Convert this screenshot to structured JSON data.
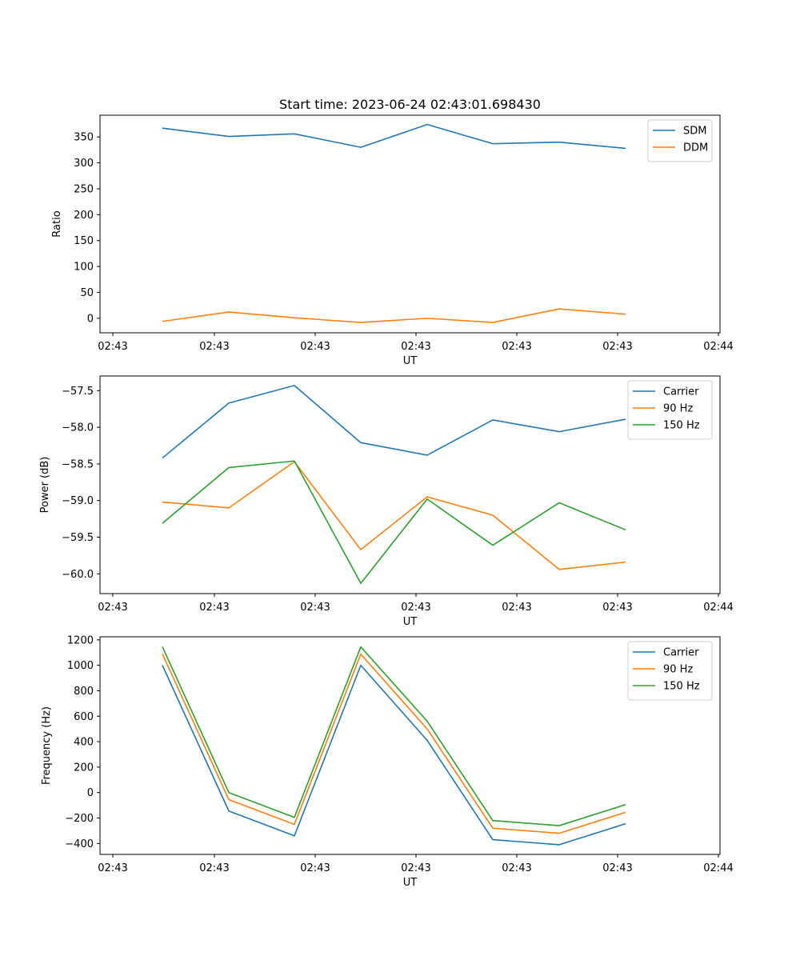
{
  "figure": {
    "title": "Start time: 2023-06-24 02:43:01.698430"
  },
  "chart_data": [
    {
      "type": "line",
      "title": "Start time: 2023-06-24 02:43:01.698430",
      "xlabel": "UT",
      "ylabel": "Ratio",
      "x_tick_labels": [
        "02:43",
        "02:43",
        "02:43",
        "02:43",
        "02:43",
        "02:43",
        "02:43"
      ],
      "x_tick_last_label": "02:44",
      "ylim": [
        -28,
        392
      ],
      "y_ticks": [
        0,
        50,
        100,
        150,
        200,
        250,
        300,
        350
      ],
      "legend_position": "top-right",
      "series": [
        {
          "name": "SDM",
          "color": "#1f77b4",
          "values": [
            367,
            351,
            356,
            330,
            374,
            337,
            340,
            328
          ]
        },
        {
          "name": "DDM",
          "color": "#ff7f0e",
          "values": [
            -6,
            12,
            1,
            -8,
            0,
            -8,
            18,
            8
          ]
        }
      ]
    },
    {
      "type": "line",
      "xlabel": "UT",
      "ylabel": "Power (dB)",
      "x_tick_labels": [
        "02:43",
        "02:43",
        "02:43",
        "02:43",
        "02:43",
        "02:43",
        "02:43"
      ],
      "x_tick_last_label": "02:44",
      "ylim": [
        -60.27,
        -57.3
      ],
      "y_ticks": [
        -60.0,
        -59.5,
        -59.0,
        -58.5,
        -58.0,
        -57.5
      ],
      "y_tick_labels": [
        "−60.0",
        "−59.5",
        "−59.0",
        "−58.5",
        "−58.0",
        "−57.5"
      ],
      "legend_position": "top-right",
      "series": [
        {
          "name": "Carrier",
          "color": "#1f77b4",
          "values": [
            -58.42,
            -57.67,
            -57.43,
            -58.21,
            -58.38,
            -57.9,
            -58.06,
            -57.89
          ]
        },
        {
          "name": "90 Hz",
          "color": "#ff7f0e",
          "values": [
            -59.02,
            -59.1,
            -58.47,
            -59.67,
            -58.95,
            -59.2,
            -59.94,
            -59.84
          ]
        },
        {
          "name": "150 Hz",
          "color": "#2ca02c",
          "values": [
            -59.31,
            -58.55,
            -58.46,
            -60.13,
            -58.98,
            -59.61,
            -59.03,
            -59.4
          ]
        }
      ]
    },
    {
      "type": "line",
      "xlabel": "UT",
      "ylabel": "Frequency (Hz)",
      "x_tick_labels": [
        "02:43",
        "02:43",
        "02:43",
        "02:43",
        "02:43",
        "02:43",
        "02:43"
      ],
      "x_tick_last_label": "02:44",
      "ylim": [
        -486,
        1224
      ],
      "y_ticks": [
        -400,
        -200,
        0,
        200,
        400,
        600,
        800,
        1000,
        1200
      ],
      "y_tick_labels": [
        "−400",
        "−200",
        "0",
        "200",
        "400",
        "600",
        "800",
        "1000",
        "1200"
      ],
      "legend_position": "top-right",
      "series": [
        {
          "name": "Carrier",
          "color": "#1f77b4",
          "values": [
            1000,
            -145,
            -340,
            1000,
            410,
            -370,
            -410,
            -245
          ]
        },
        {
          "name": "90 Hz",
          "color": "#ff7f0e",
          "values": [
            1090,
            -55,
            -250,
            1088,
            500,
            -280,
            -320,
            -155
          ]
        },
        {
          "name": "150 Hz",
          "color": "#2ca02c",
          "values": [
            1145,
            0,
            -195,
            1145,
            560,
            -220,
            -260,
            -95
          ]
        }
      ]
    }
  ]
}
